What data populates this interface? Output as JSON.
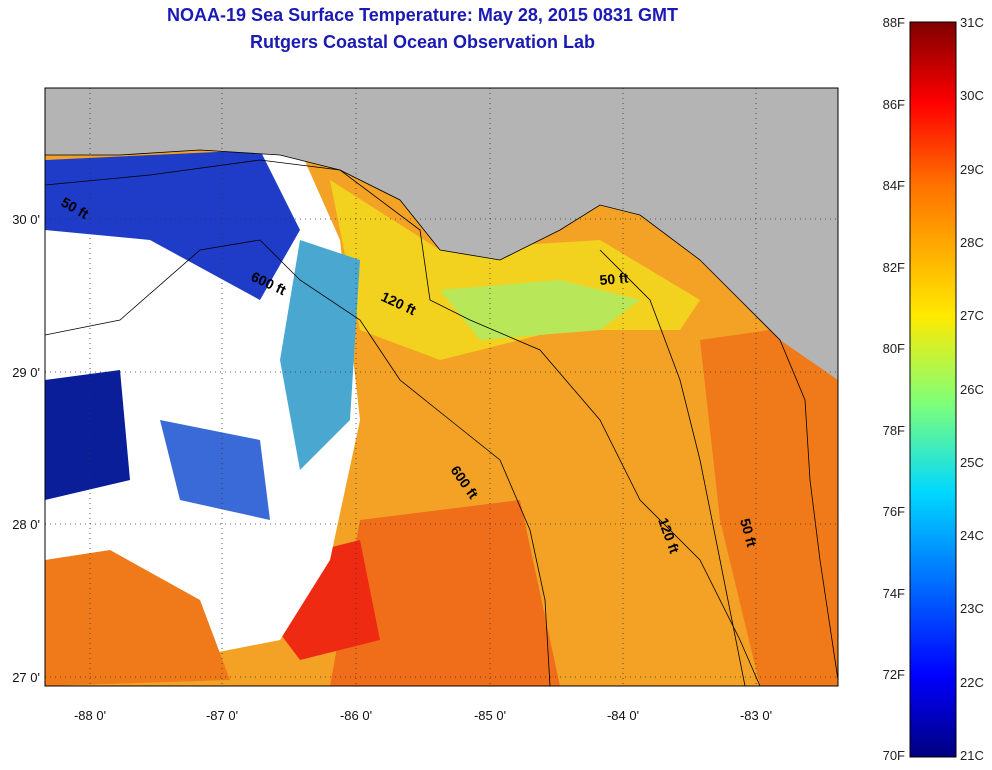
{
  "title": "NOAA-19 Sea Surface Temperature:  May 28, 2015 0831 GMT",
  "subtitle": "Rutgers Coastal Ocean Observation Lab",
  "map": {
    "lon_labels": [
      "-88 0'",
      "-87 0'",
      "-86 0'",
      "-85 0'",
      "-84 0'",
      "-83 0'"
    ],
    "lat_labels": [
      "30 0'",
      "29 0'",
      "28 0'",
      "27 0'"
    ],
    "contour_labels": [
      "50 ft",
      "600 ft",
      "120 ft",
      "50 ft",
      "600 ft",
      "120 ft",
      "50 ft"
    ]
  },
  "colorbar": {
    "fahrenheit_labels": [
      "88F",
      "86F",
      "84F",
      "82F",
      "80F",
      "78F",
      "76F",
      "74F",
      "72F",
      "70F"
    ],
    "celsius_labels": [
      "31C",
      "30C",
      "29C",
      "28C",
      "27C",
      "26C",
      "25C",
      "24C",
      "23C",
      "22C",
      "21C"
    ],
    "range_f": [
      70,
      88
    ],
    "range_c": [
      21,
      31
    ]
  },
  "colors": {
    "title": "#1a1ab4",
    "land": "#b4b4b4",
    "cloud": "#ffffff",
    "warm": "#f08a1e",
    "cool": "#1e3cc8"
  }
}
